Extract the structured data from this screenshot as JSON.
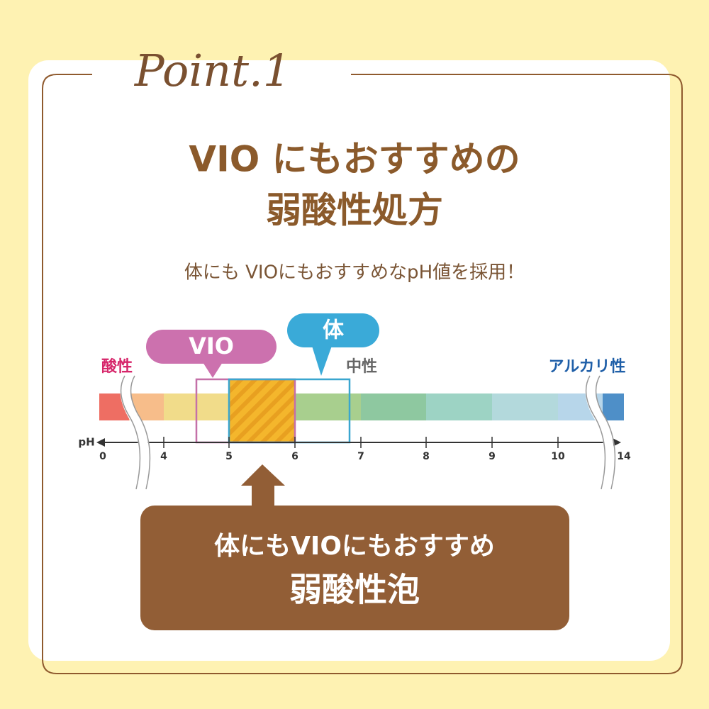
{
  "header": {
    "badge": "Point.1",
    "title_lines": [
      "VIO にもおすすめの",
      "弱酸性処方"
    ],
    "subtitle": "体にも VIOにもおすすめなpH値を採用！"
  },
  "scale": {
    "callouts": [
      "VIO",
      "体"
    ],
    "zone_labels": [
      "酸性",
      "中性",
      "アルカリ性"
    ],
    "axis_label": "pH",
    "ticks": [
      0,
      4,
      5,
      6,
      7,
      8,
      9,
      10,
      14
    ]
  },
  "result": {
    "lines": [
      "体にもVIOにもおすすめ",
      "弱酸性泡"
    ]
  }
}
